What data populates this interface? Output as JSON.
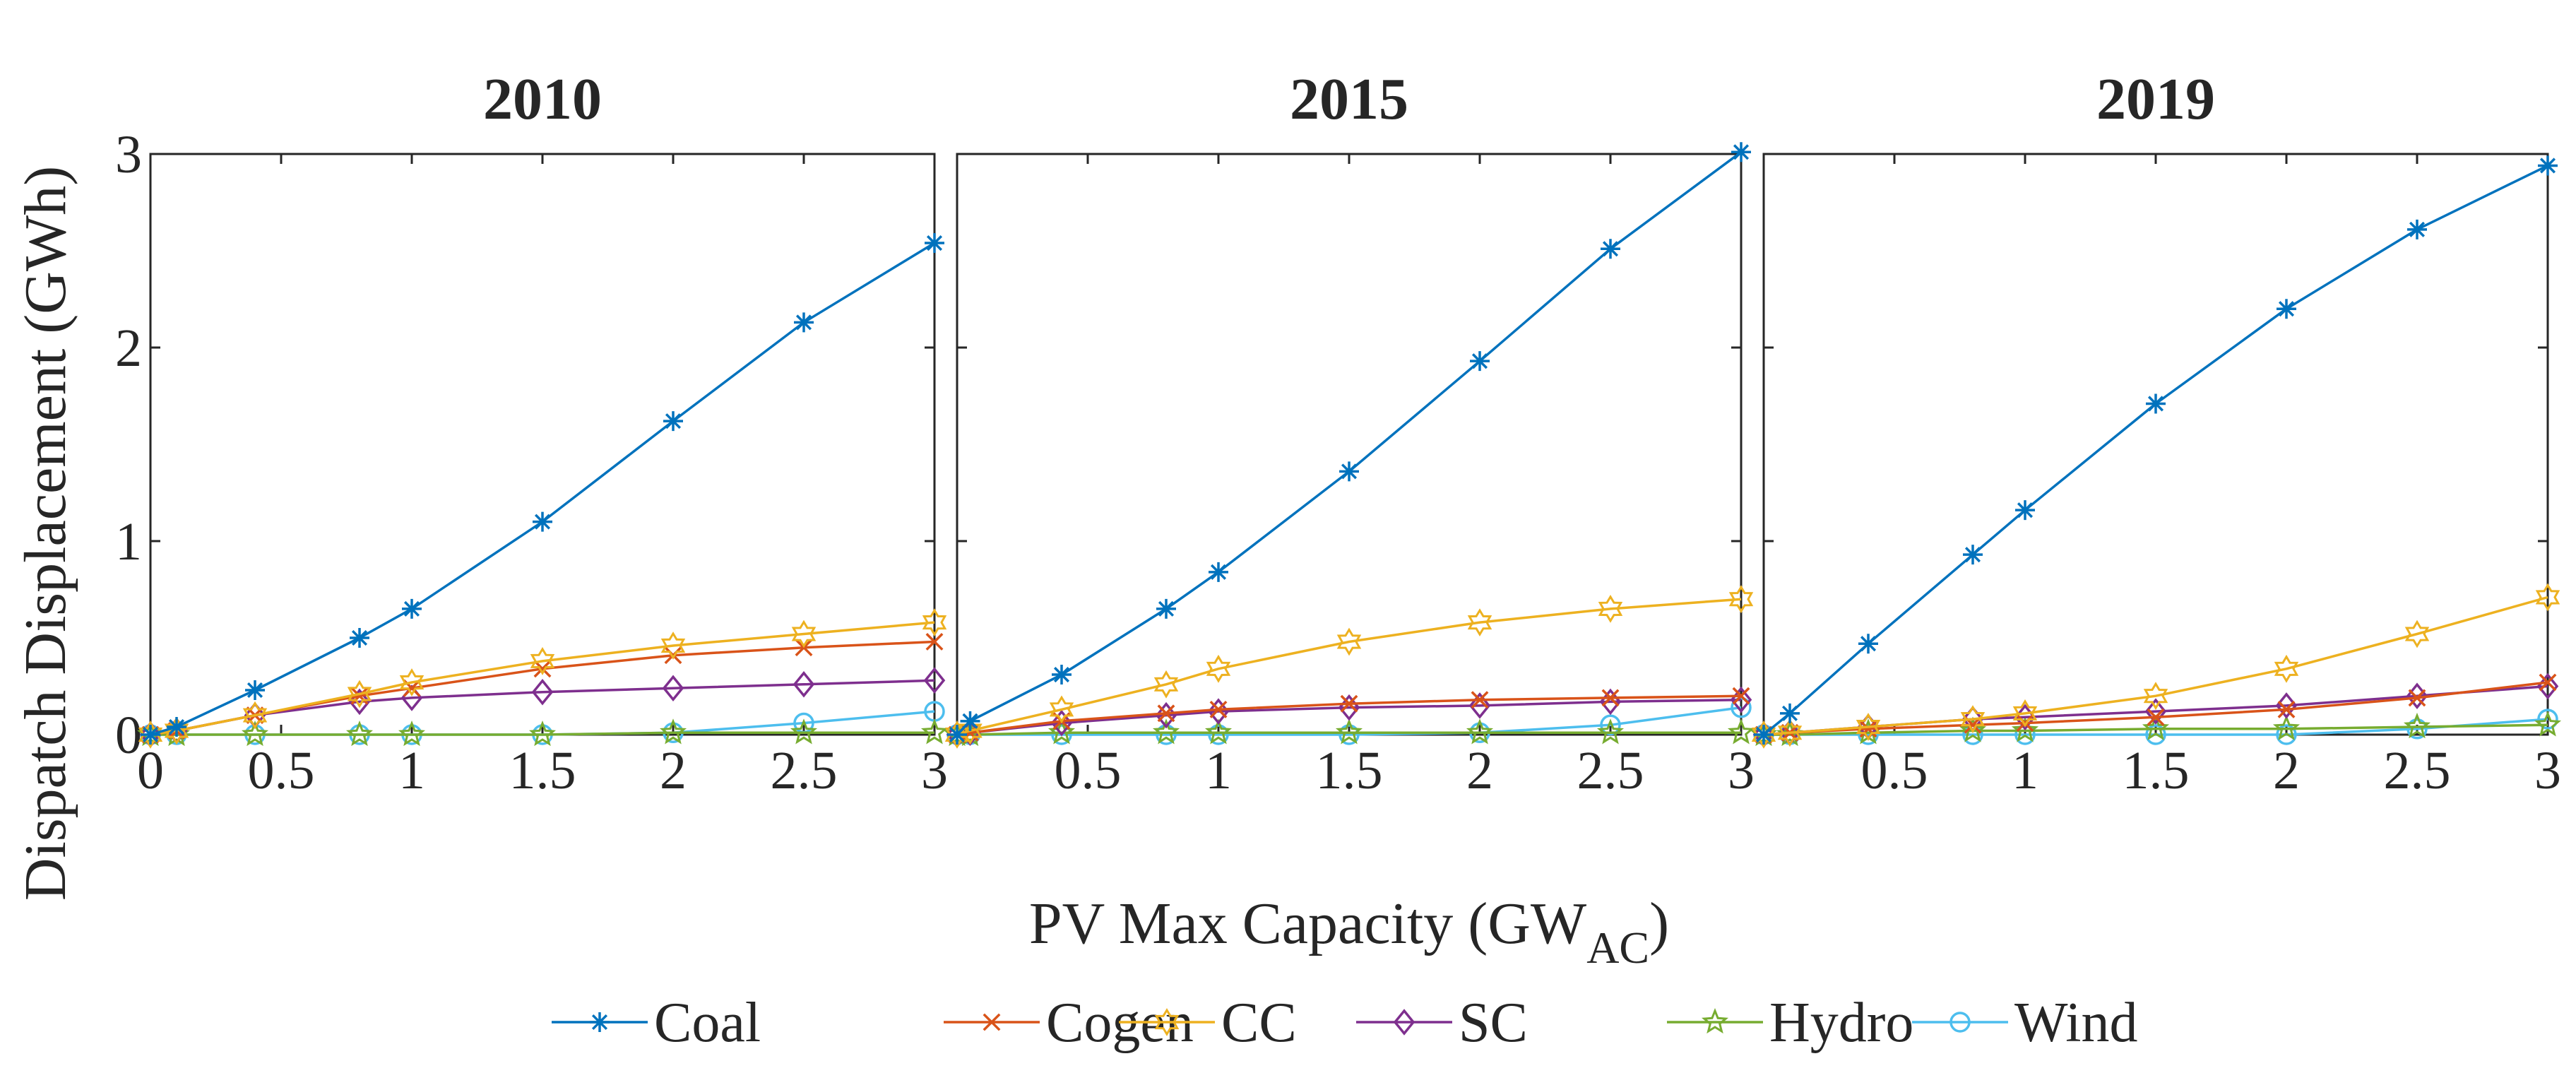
{
  "chart_data": {
    "type": "line",
    "shared_ylabel": "Dispatch Displacement (GWh)",
    "shared_xlabel": {
      "main": "PV Max Capacity (GW",
      "subscript": "AC",
      "close": ")"
    },
    "xlim": [
      0,
      3
    ],
    "ylim": [
      0,
      3
    ],
    "xticks": [
      0,
      0.5,
      1,
      1.5,
      2,
      2.5,
      3
    ],
    "xtick_labels": [
      "0",
      "0.5",
      "1",
      "1.5",
      "2",
      "2.5",
      "3"
    ],
    "xtick_labels_other_panels": [
      "0.5",
      "1",
      "1.5",
      "2",
      "2.5",
      "3"
    ],
    "yticks": [
      0,
      1,
      2,
      3
    ],
    "ytick_labels": [
      "0",
      "1",
      "2",
      "3"
    ],
    "legend": {
      "placement": "bottom",
      "entries": [
        {
          "name": "Coal",
          "color": "#0072BD",
          "marker": "asterisk"
        },
        {
          "name": "Cogen",
          "color": "#D95319",
          "marker": "x"
        },
        {
          "name": "CC",
          "color": "#EDB120",
          "marker": "hexagram"
        },
        {
          "name": "SC",
          "color": "#7E2F8E",
          "marker": "diamond"
        },
        {
          "name": "Hydro",
          "color": "#77AC30",
          "marker": "pentagram"
        },
        {
          "name": "Wind",
          "color": "#4DBEEE",
          "marker": "circle"
        }
      ]
    },
    "panels": [
      {
        "title": "2010",
        "x": [
          0,
          0.1,
          0.4,
          0.8,
          1.0,
          1.5,
          2.0,
          2.5,
          3.0
        ],
        "series": [
          {
            "name": "Coal",
            "values": [
              0,
              0.04,
              0.23,
              0.5,
              0.65,
              1.1,
              1.62,
              2.13,
              2.54
            ]
          },
          {
            "name": "Cogen",
            "values": [
              0,
              0.02,
              0.1,
              0.2,
              0.24,
              0.34,
              0.41,
              0.45,
              0.48
            ]
          },
          {
            "name": "CC",
            "values": [
              0,
              0.02,
              0.1,
              0.21,
              0.27,
              0.38,
              0.46,
              0.52,
              0.58
            ]
          },
          {
            "name": "SC",
            "values": [
              0,
              0.02,
              0.1,
              0.17,
              0.19,
              0.22,
              0.24,
              0.26,
              0.28
            ]
          },
          {
            "name": "Hydro",
            "values": [
              0,
              0,
              0,
              0,
              0,
              0,
              0.01,
              0.01,
              0.01
            ]
          },
          {
            "name": "Wind",
            "values": [
              0,
              0,
              0,
              0,
              0,
              0,
              0.01,
              0.06,
              0.12
            ]
          }
        ]
      },
      {
        "title": "2015",
        "x": [
          0,
          0.05,
          0.4,
          0.8,
          1.0,
          1.5,
          2.0,
          2.5,
          3.0
        ],
        "series": [
          {
            "name": "Coal",
            "values": [
              0,
              0.07,
              0.31,
              0.65,
              0.84,
              1.36,
              1.93,
              2.51,
              3.01
            ]
          },
          {
            "name": "Cogen",
            "values": [
              0,
              0.01,
              0.07,
              0.11,
              0.13,
              0.16,
              0.18,
              0.19,
              0.2
            ]
          },
          {
            "name": "CC",
            "values": [
              0,
              0.02,
              0.13,
              0.26,
              0.34,
              0.48,
              0.58,
              0.65,
              0.7
            ]
          },
          {
            "name": "SC",
            "values": [
              0,
              0.01,
              0.06,
              0.1,
              0.12,
              0.14,
              0.15,
              0.17,
              0.18
            ]
          },
          {
            "name": "Hydro",
            "values": [
              0,
              0,
              0.01,
              0.01,
              0.01,
              0.01,
              0.01,
              0.01,
              0.01
            ]
          },
          {
            "name": "Wind",
            "values": [
              0,
              0,
              0,
              0,
              0,
              0,
              0.01,
              0.05,
              0.14
            ]
          }
        ]
      },
      {
        "title": "2019",
        "x": [
          0,
          0.1,
          0.4,
          0.8,
          1.0,
          1.5,
          2.0,
          2.5,
          3.0
        ],
        "series": [
          {
            "name": "Coal",
            "values": [
              0,
              0.11,
              0.47,
              0.93,
              1.16,
              1.71,
              2.2,
              2.61,
              2.94
            ]
          },
          {
            "name": "Cogen",
            "values": [
              0,
              0.01,
              0.03,
              0.05,
              0.06,
              0.09,
              0.13,
              0.19,
              0.27
            ]
          },
          {
            "name": "CC",
            "values": [
              0,
              0.01,
              0.04,
              0.08,
              0.11,
              0.2,
              0.34,
              0.52,
              0.71
            ]
          },
          {
            "name": "SC",
            "values": [
              0,
              0.01,
              0.04,
              0.08,
              0.09,
              0.12,
              0.15,
              0.2,
              0.25
            ]
          },
          {
            "name": "Hydro",
            "values": [
              0,
              0,
              0.01,
              0.02,
              0.02,
              0.03,
              0.03,
              0.04,
              0.05
            ]
          },
          {
            "name": "Wind",
            "values": [
              0,
              0,
              0,
              0,
              0,
              0,
              0,
              0.03,
              0.08
            ]
          }
        ]
      }
    ]
  }
}
